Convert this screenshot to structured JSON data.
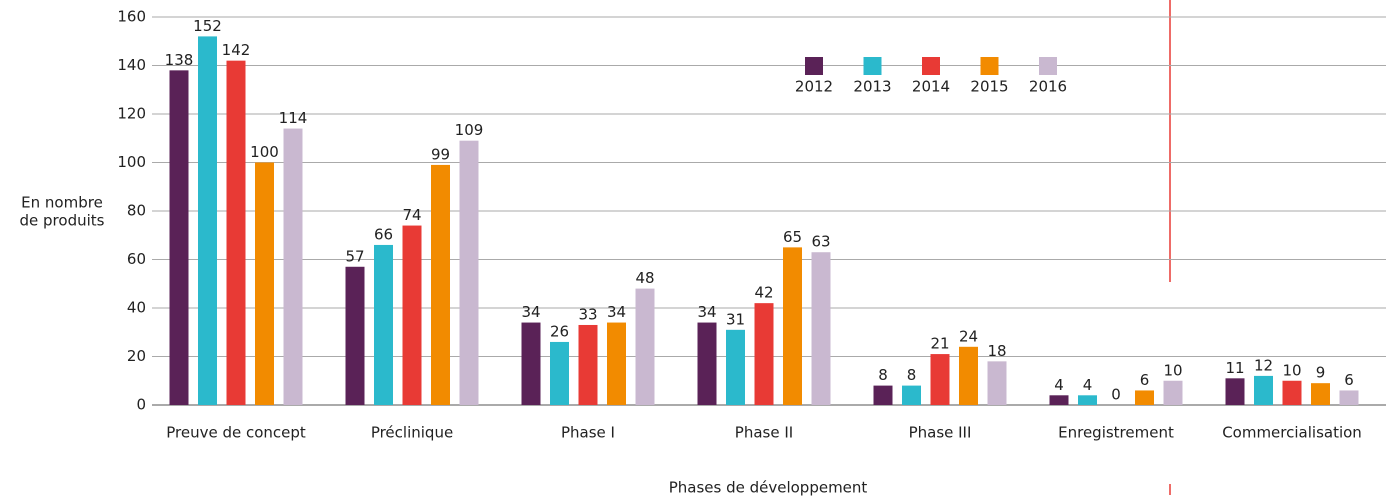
{
  "chart_data": {
    "type": "bar",
    "y_label": [
      "En nombre",
      "de produits"
    ],
    "x_label": "Phases de développement",
    "categories": [
      "Preuve de concept",
      "Préclinique",
      "Phase I",
      "Phase II",
      "Phase III",
      "Enregistrement",
      "Commercialisation"
    ],
    "series": [
      {
        "name": "2012",
        "color": "#5a2257",
        "values": [
          138,
          57,
          34,
          34,
          8,
          4,
          11
        ]
      },
      {
        "name": "2013",
        "color": "#2bb9cc",
        "values": [
          152,
          66,
          26,
          31,
          8,
          4,
          12
        ]
      },
      {
        "name": "2014",
        "color": "#e83a35",
        "values": [
          142,
          74,
          33,
          42,
          21,
          0,
          10
        ]
      },
      {
        "name": "2015",
        "color": "#f28b00",
        "values": [
          100,
          99,
          34,
          65,
          24,
          6,
          9
        ]
      },
      {
        "name": "2016",
        "color": "#c9b8d0",
        "values": [
          114,
          109,
          48,
          63,
          18,
          10,
          6
        ]
      }
    ],
    "ylim": [
      0,
      160
    ],
    "yticks": [
      0,
      20,
      40,
      60,
      80,
      100,
      120,
      140,
      160
    ],
    "grid": true
  }
}
